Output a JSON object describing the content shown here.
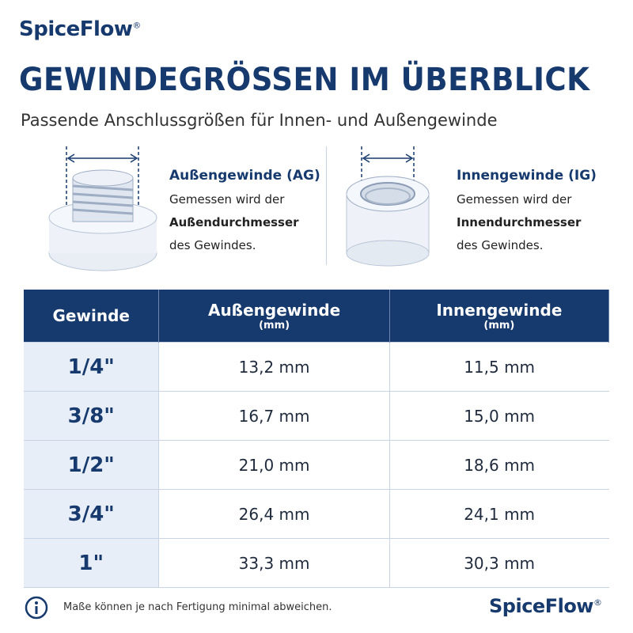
{
  "header": {
    "brand": "SpiceFlow",
    "brand_mark": "®",
    "title": "GEWINDEGRÖSSEN IM ÜBERBLICK",
    "subtitle": "Passende Anschlussgrößen für Innen- und Außengewinde"
  },
  "panels": [
    {
      "title": "Außengewinde (AG)",
      "text_before": "Gemessen wird der",
      "text_bold": "Außendurchmesser",
      "text_after": "des Gewindes."
    },
    {
      "title": "Innengewinde (IG)",
      "text_before": "Gemessen wird der",
      "text_bold": "Innendurchmesser",
      "text_after": "des Gewindes."
    }
  ],
  "table": {
    "header": [
      {
        "label": "Gewinde"
      },
      {
        "label": "Außengewinde",
        "unit": "(mm)"
      },
      {
        "label": "Innengewinde",
        "unit": "(mm)"
      }
    ],
    "rows": [
      [
        "1/4\"",
        "13,2 mm",
        "11,5 mm"
      ],
      [
        "3/8\"",
        "16,7 mm",
        "15,0 mm"
      ],
      [
        "1/2\"",
        "21,0 mm",
        "18,6 mm"
      ],
      [
        "3/4\"",
        "26,4 mm",
        "24,1 mm"
      ],
      [
        "1\"",
        "33,3 mm",
        "30,3 mm"
      ]
    ]
  },
  "footer": {
    "note": "Maße können je nach Fertigung minimal abweichen."
  }
}
